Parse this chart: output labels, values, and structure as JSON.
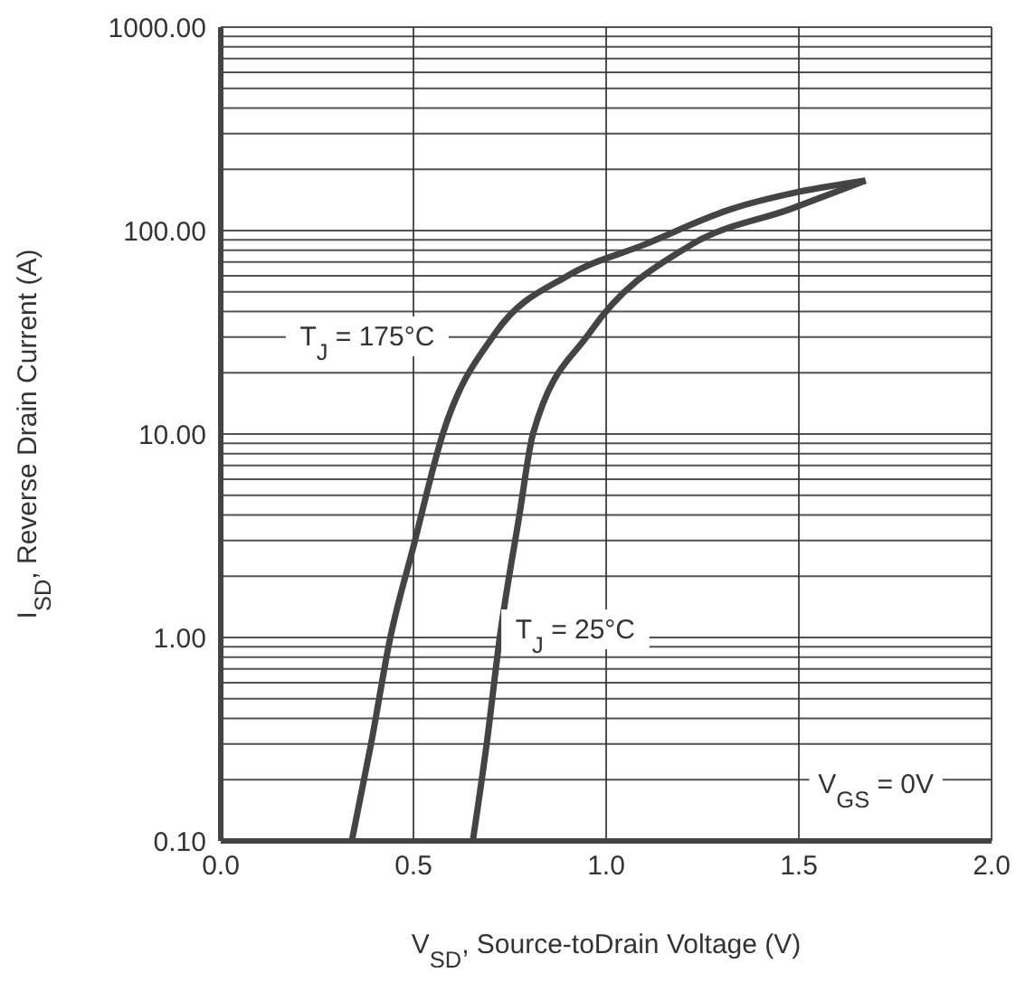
{
  "chart_data": {
    "type": "line",
    "xlabel": "V$_{SD}$, Source-toDrain Voltage (V)",
    "ylabel": "I$_{SD}$, Reverse Drain Current (A)",
    "log": "y",
    "grid": true,
    "marker": "none",
    "line_style": "solid",
    "xlim": [
      0,
      2
    ],
    "xticks": [
      {
        "value": 0,
        "label": "0.0"
      },
      {
        "value": 0.5,
        "label": "0.5"
      },
      {
        "value": 1,
        "label": "1.0"
      },
      {
        "value": 1.5,
        "label": "1.5"
      },
      {
        "value": 2,
        "label": "2.0"
      }
    ],
    "ylim": [
      0.1,
      1000
    ],
    "yticks": [
      {
        "value": 0.1,
        "label": "0.10"
      },
      {
        "value": 0.2,
        "label": null
      },
      {
        "value": 0.3,
        "label": null
      },
      {
        "value": 0.4,
        "label": null
      },
      {
        "value": 0.5,
        "label": null
      },
      {
        "value": 0.6,
        "label": null
      },
      {
        "value": 0.7,
        "label": null
      },
      {
        "value": 0.8,
        "label": null
      },
      {
        "value": 0.9,
        "label": null
      },
      {
        "value": 1,
        "label": "1.00"
      },
      {
        "value": 2,
        "label": null
      },
      {
        "value": 3,
        "label": null
      },
      {
        "value": 4,
        "label": null
      },
      {
        "value": 5,
        "label": null
      },
      {
        "value": 6,
        "label": null
      },
      {
        "value": 7,
        "label": null
      },
      {
        "value": 8,
        "label": null
      },
      {
        "value": 9,
        "label": null
      },
      {
        "value": 10,
        "label": "10.00"
      },
      {
        "value": 20,
        "label": null
      },
      {
        "value": 30,
        "label": null
      },
      {
        "value": 40,
        "label": null
      },
      {
        "value": 50,
        "label": null
      },
      {
        "value": 60,
        "label": null
      },
      {
        "value": 70,
        "label": null
      },
      {
        "value": 80,
        "label": null
      },
      {
        "value": 90,
        "label": null
      },
      {
        "value": 100,
        "label": "100.00"
      },
      {
        "value": 200,
        "label": null
      },
      {
        "value": 300,
        "label": null
      },
      {
        "value": 400,
        "label": null
      },
      {
        "value": 500,
        "label": null
      },
      {
        "value": 600,
        "label": null
      },
      {
        "value": 700,
        "label": null
      },
      {
        "value": 800,
        "label": null
      },
      {
        "value": 900,
        "label": null
      },
      {
        "value": 1000,
        "label": "1000.00"
      }
    ],
    "series": [
      {
        "color": "#444444",
        "x": [
          0.34,
          0.39,
          0.44,
          0.5,
          0.576,
          0.714,
          0.9,
          1.097,
          1.327,
          1.5,
          1.673
        ],
        "values": [
          0.1,
          0.3,
          1,
          2.8,
          10,
          31.6,
          60,
          85,
          128,
          155,
          176
        ]
      },
      {
        "color": "#444444",
        "x": [
          0.654,
          0.69,
          0.724,
          0.774,
          0.81,
          0.958,
          1.22,
          1.48,
          1.673
        ],
        "values": [
          0.1,
          0.3,
          1,
          3.9,
          10,
          31.6,
          85,
          128,
          176
        ]
      }
    ],
    "annotations": [
      "T$_{J}$ = 175°C",
      "T$_{J}$ = 25°C",
      "V$_{GS}$ = 0V"
    ]
  }
}
